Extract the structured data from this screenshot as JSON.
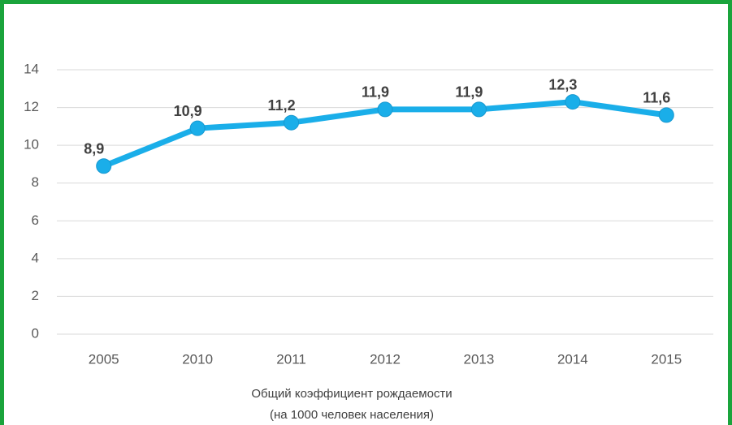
{
  "chart_data": {
    "type": "line",
    "categories": [
      "2005",
      "2010",
      "2011",
      "2012",
      "2013",
      "2014",
      "2015"
    ],
    "values": [
      8.9,
      10.9,
      11.2,
      11.9,
      11.9,
      12.3,
      11.6
    ],
    "value_labels": [
      "8,9",
      "10,9",
      "11,2",
      "11,9",
      "11,9",
      "12,3",
      "11,6"
    ],
    "color": "#1aaee9",
    "ylim": [
      0,
      14
    ],
    "yticks": [
      0,
      2,
      4,
      6,
      8,
      10,
      12,
      14
    ],
    "grid": true,
    "xlabel": [
      "Общий коэффициент рождаемости",
      "(на 1000 человек населения)"
    ]
  }
}
